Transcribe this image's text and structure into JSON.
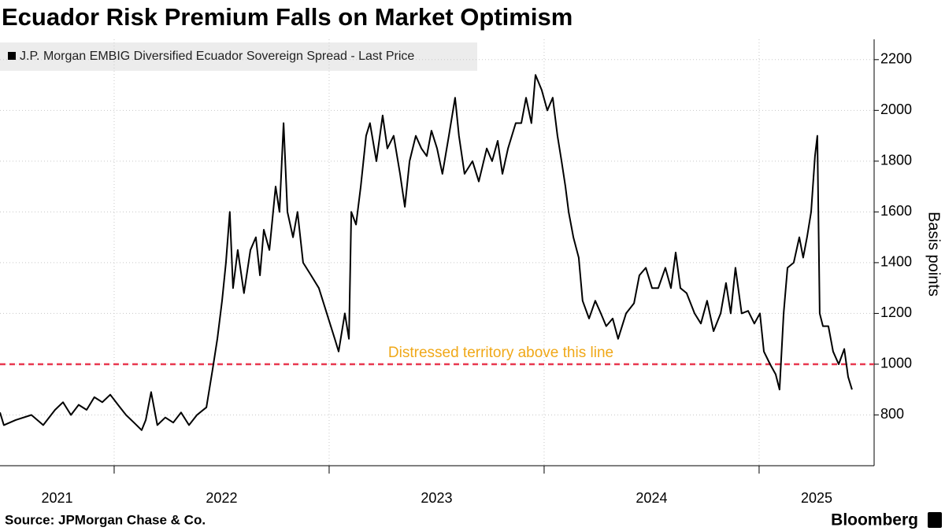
{
  "chart_data": {
    "type": "line",
    "title": "Ecuador Risk Premium Falls on Market Optimism",
    "y_label": "Basis points",
    "source": "Source: JPMorgan Chase & Co.",
    "brand": "Bloomberg",
    "reference_line": {
      "value": 1000,
      "color": "#e8384f",
      "label": "Distressed territory above this line",
      "label_color": "#f0a818"
    },
    "xlim": [
      2021.469,
      2025.535
    ],
    "xticks": [
      2021,
      2022,
      2023,
      2024,
      2025
    ],
    "ylim": [
      600,
      2280
    ],
    "yticks": [
      800,
      1000,
      1200,
      1400,
      1600,
      1800,
      2000,
      2200
    ],
    "grid": true,
    "legend": "top-left",
    "x": [
      2021.469,
      2021.487,
      2021.542,
      2021.615,
      2021.67,
      2021.725,
      2021.762,
      2021.799,
      2021.835,
      2021.872,
      2021.908,
      2021.945,
      2021.982,
      2022.018,
      2022.055,
      2022.092,
      2022.128,
      2022.147,
      2022.172,
      2022.201,
      2022.238,
      2022.275,
      2022.311,
      2022.348,
      2022.385,
      2022.429,
      2022.458,
      2022.48,
      2022.502,
      2022.52,
      2022.538,
      2022.553,
      2022.575,
      2022.604,
      2022.634,
      2022.659,
      2022.678,
      2022.696,
      2022.722,
      2022.751,
      2022.769,
      2022.788,
      2022.806,
      2022.832,
      2022.853,
      2022.879,
      2022.916,
      2022.952,
      2022.989,
      2023.026,
      2023.044,
      2023.073,
      2023.092,
      2023.103,
      2023.125,
      2023.147,
      2023.172,
      2023.19,
      2023.22,
      2023.249,
      2023.271,
      2023.3,
      2023.33,
      2023.352,
      2023.374,
      2023.403,
      2023.429,
      2023.454,
      2023.476,
      2023.502,
      2023.527,
      2023.557,
      2023.586,
      2023.604,
      2023.63,
      2023.667,
      2023.696,
      2023.733,
      2023.758,
      2023.784,
      2023.806,
      2023.832,
      2023.868,
      2023.894,
      2023.916,
      2023.941,
      2023.96,
      2023.989,
      2024.015,
      2024.04,
      2024.062,
      2024.081,
      2024.099,
      2024.114,
      2024.136,
      2024.161,
      2024.179,
      2024.209,
      2024.238,
      2024.264,
      2024.289,
      2024.319,
      2024.344,
      2024.381,
      2024.418,
      2024.443,
      2024.473,
      2024.502,
      2024.531,
      2024.564,
      2024.59,
      2024.612,
      2024.634,
      2024.663,
      2024.7,
      2024.729,
      2024.758,
      2024.788,
      2024.821,
      2024.846,
      2024.868,
      2024.89,
      2024.919,
      2024.949,
      2024.978,
      2025.004,
      2025.022,
      2025.051,
      2025.077,
      2025.095,
      2025.114,
      2025.132,
      2025.161,
      2025.187,
      2025.205,
      2025.223,
      2025.242,
      2025.26,
      2025.271,
      2025.282,
      2025.297,
      2025.322,
      2025.344,
      2025.37,
      2025.396,
      2025.414,
      2025.432
    ],
    "series": [
      {
        "name": "J.P. Morgan EMBIG Diversified Ecuador Sovereign Spread - Last Price",
        "color": "#000000",
        "values": [
          810,
          760,
          780,
          800,
          760,
          820,
          850,
          800,
          840,
          820,
          870,
          850,
          880,
          840,
          800,
          770,
          740,
          780,
          890,
          760,
          790,
          770,
          810,
          760,
          800,
          830,
          980,
          1100,
          1250,
          1400,
          1600,
          1300,
          1450,
          1280,
          1450,
          1500,
          1350,
          1530,
          1450,
          1700,
          1600,
          1950,
          1600,
          1500,
          1600,
          1400,
          1350,
          1300,
          1200,
          1100,
          1050,
          1200,
          1100,
          1600,
          1550,
          1700,
          1900,
          1950,
          1800,
          1980,
          1850,
          1900,
          1750,
          1620,
          1800,
          1900,
          1850,
          1820,
          1920,
          1850,
          1750,
          1900,
          2050,
          1900,
          1750,
          1800,
          1720,
          1850,
          1800,
          1880,
          1750,
          1850,
          1950,
          1950,
          2050,
          1950,
          2140,
          2080,
          2000,
          2050,
          1900,
          1800,
          1700,
          1600,
          1500,
          1420,
          1250,
          1180,
          1250,
          1200,
          1150,
          1180,
          1100,
          1200,
          1240,
          1350,
          1380,
          1300,
          1300,
          1380,
          1300,
          1440,
          1300,
          1280,
          1200,
          1160,
          1250,
          1130,
          1200,
          1320,
          1200,
          1380,
          1200,
          1210,
          1160,
          1200,
          1050,
          1000,
          960,
          900,
          1200,
          1380,
          1400,
          1500,
          1420,
          1500,
          1600,
          1820,
          1900,
          1200,
          1150,
          1150,
          1050,
          1000,
          1060,
          950,
          900
        ]
      }
    ]
  }
}
